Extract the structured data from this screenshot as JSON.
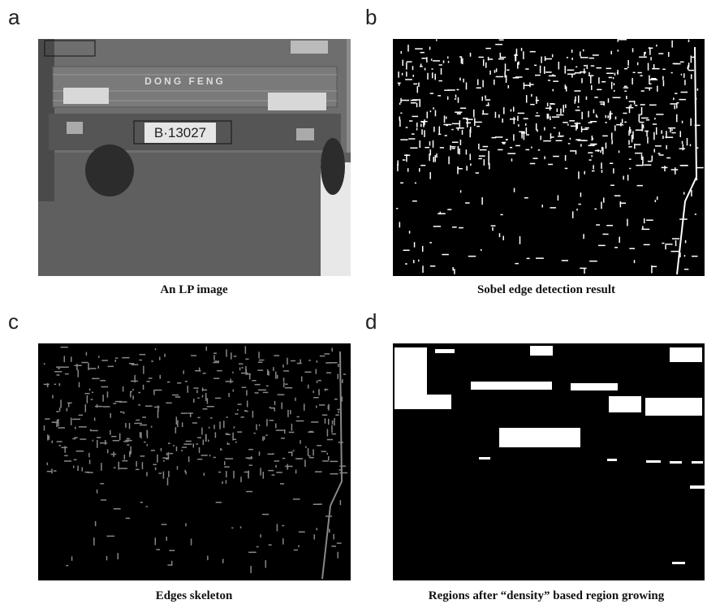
{
  "panels": [
    {
      "label": "a",
      "caption": "An LP image",
      "plate_text": "B·13027",
      "brand_text": "DONG FENG"
    },
    {
      "label": "b",
      "caption": "Sobel edge detection result"
    },
    {
      "label": "c",
      "caption": "Edges skeleton"
    },
    {
      "label": "d",
      "caption": "Regions after “density” based region growing"
    }
  ]
}
